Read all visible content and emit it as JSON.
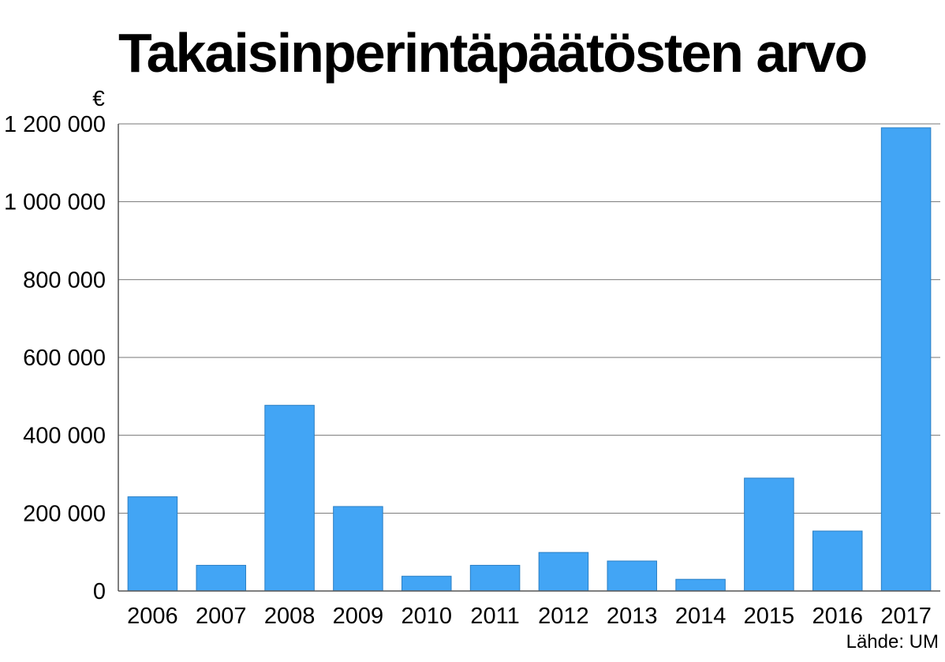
{
  "chart_data": {
    "type": "bar",
    "title": "Takaisinperintäpäätösten arvo",
    "unit_label": "€",
    "categories": [
      "2006",
      "2007",
      "2008",
      "2009",
      "2010",
      "2011",
      "2012",
      "2013",
      "2014",
      "2015",
      "2016",
      "2017"
    ],
    "values": [
      242000,
      66000,
      477000,
      217000,
      38000,
      66000,
      99000,
      77000,
      30000,
      290000,
      154000,
      1190000
    ],
    "ylim": [
      0,
      1200000
    ],
    "yticks": [
      0,
      200000,
      400000,
      600000,
      800000,
      1000000,
      1200000
    ],
    "ytick_labels": [
      "0",
      "200 000",
      "400 000",
      "600 000",
      "800 000",
      "1 000 000",
      "1 200 000"
    ],
    "grid": true,
    "bar_color": "#42a5f5",
    "source": "Lähde: UM"
  }
}
